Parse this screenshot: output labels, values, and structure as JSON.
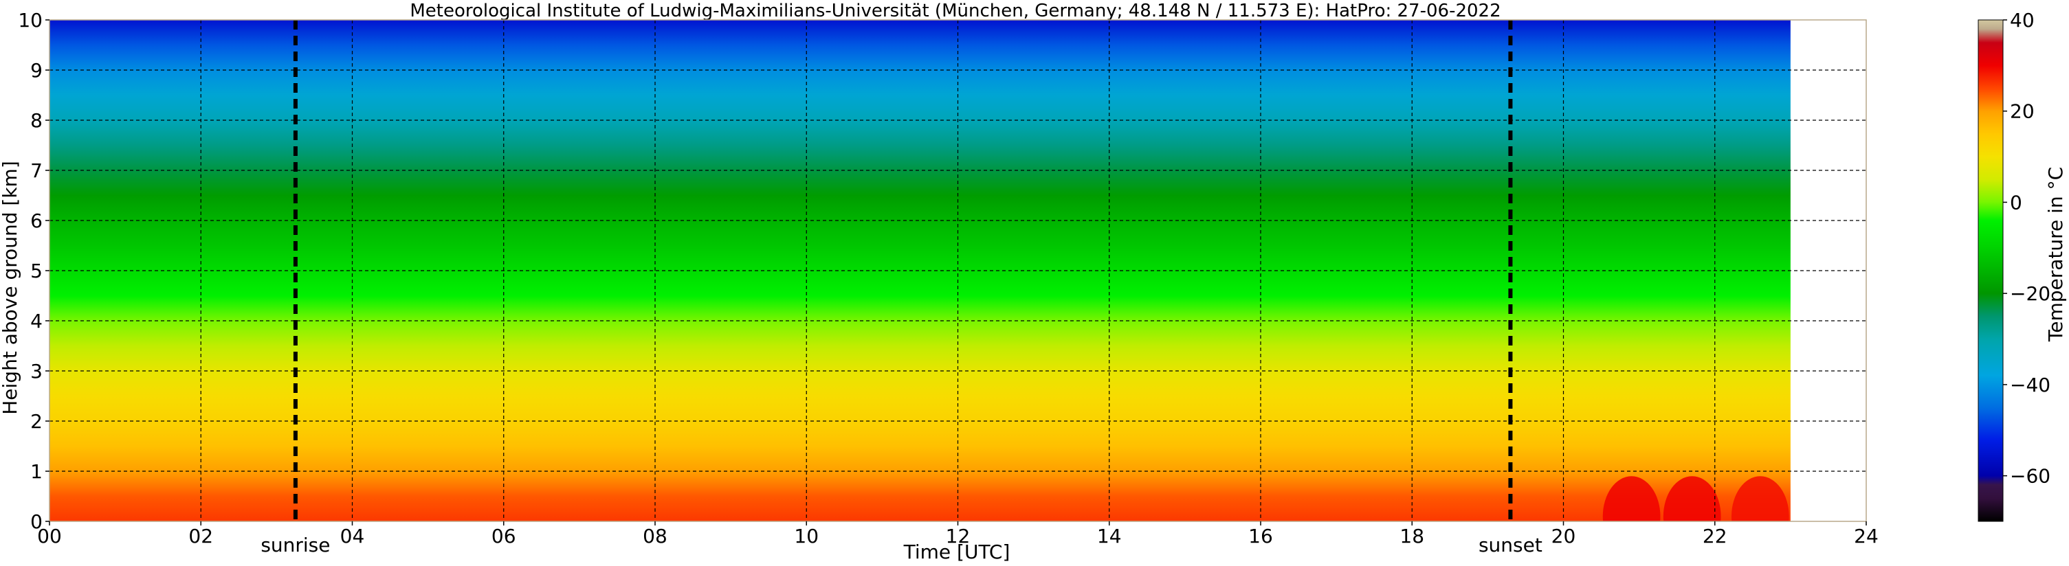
{
  "chart_data": {
    "type": "heatmap",
    "title": "Meteorological Institute of Ludwig-Maximilians-Universität (München, Germany; 48.148 N / 11.573 E):    HatPro: 27-06-2022",
    "xlabel": "Time [UTC]",
    "ylabel": "Height above ground [km]",
    "xlim": [
      0,
      24
    ],
    "ylim": [
      0,
      10
    ],
    "data_end_hour": 23,
    "xticks": [
      "00",
      "02",
      "04",
      "06",
      "08",
      "10",
      "12",
      "14",
      "16",
      "18",
      "20",
      "22",
      "24"
    ],
    "yticks": [
      "0",
      "1",
      "2",
      "3",
      "4",
      "5",
      "6",
      "7",
      "8",
      "9",
      "10"
    ],
    "grid": true,
    "colorbar": {
      "label": "Temperature in °C",
      "ticks": [
        "40",
        "20",
        "0",
        "−20",
        "−40",
        "−60"
      ],
      "range": [
        -70,
        40
      ]
    },
    "markers": [
      {
        "label": "sunrise",
        "hour": 3.25
      },
      {
        "label": "sunset",
        "hour": 19.3
      }
    ],
    "temperature_profile": {
      "height_km": [
        0,
        0.5,
        1,
        1.5,
        2,
        2.5,
        3,
        3.5,
        4,
        4.5,
        5,
        5.5,
        6,
        6.5,
        7,
        7.5,
        8,
        8.5,
        9,
        9.5,
        10
      ],
      "temp_c": [
        26,
        24,
        20,
        16,
        13,
        11,
        8,
        4,
        0,
        -4,
        -8,
        -12,
        -15,
        -19,
        -23,
        -27,
        -32,
        -36,
        -41,
        -47,
        -55
      ]
    },
    "warm_events_after_sunset": [
      {
        "center_hour": 20.9,
        "peak_temp_c": 30
      },
      {
        "center_hour": 21.7,
        "peak_temp_c": 30
      },
      {
        "center_hour": 22.6,
        "peak_temp_c": 29
      }
    ]
  }
}
